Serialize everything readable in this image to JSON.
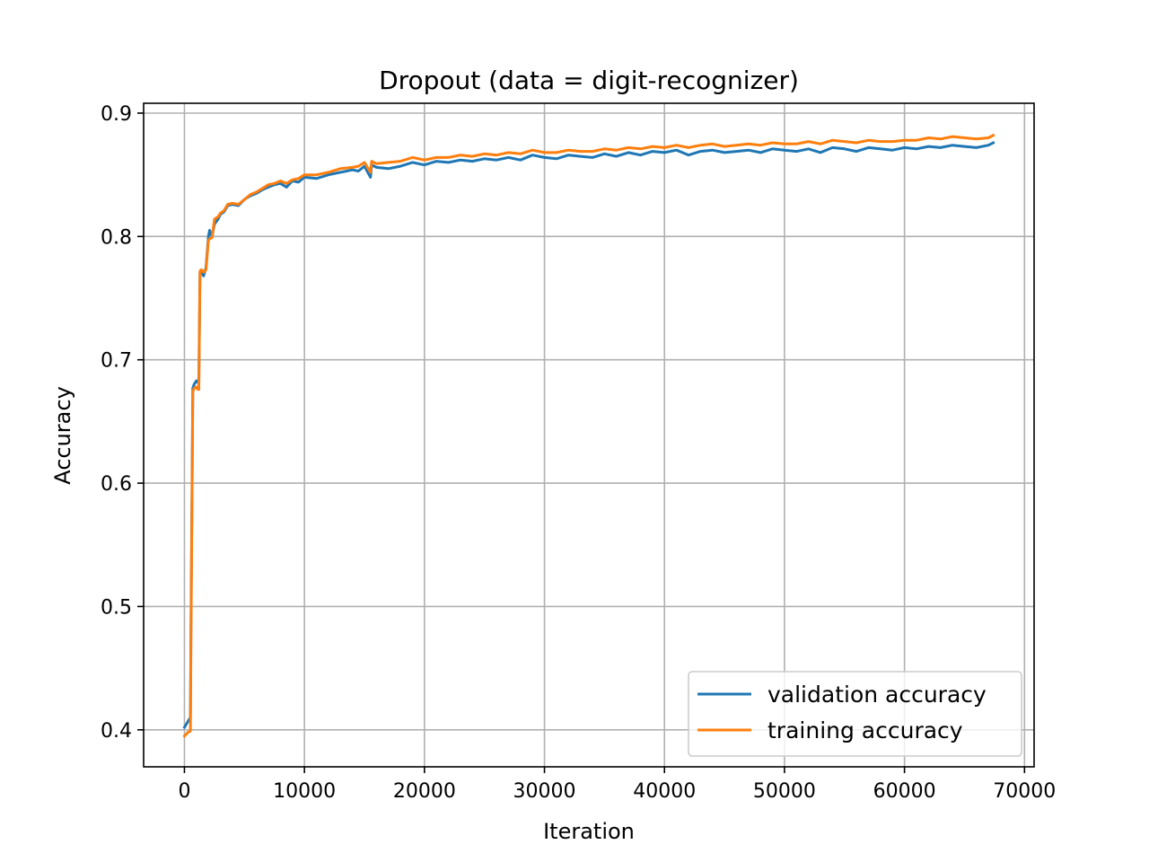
{
  "chart_data": {
    "type": "line",
    "title": "Dropout (data = digit-recognizer)",
    "xlabel": "Iteration",
    "ylabel": "Accuracy",
    "xlim": [
      -3400,
      70800
    ],
    "ylim": [
      0.37,
      0.908
    ],
    "xticks": [
      0,
      10000,
      20000,
      30000,
      40000,
      50000,
      60000,
      70000
    ],
    "yticks": [
      0.4,
      0.5,
      0.6,
      0.7,
      0.8,
      0.9
    ],
    "xtick_labels": [
      "0",
      "10000",
      "20000",
      "30000",
      "40000",
      "50000",
      "60000",
      "70000"
    ],
    "ytick_labels": [
      "0.4",
      "0.5",
      "0.6",
      "0.7",
      "0.8",
      "0.9"
    ],
    "grid": true,
    "legend_position": "lower-right",
    "series": [
      {
        "name": "validation accuracy",
        "color": "#1f77b4",
        "x": [
          0,
          300,
          500,
          550,
          700,
          800,
          1000,
          1100,
          1200,
          1300,
          1400,
          1600,
          1800,
          2000,
          2100,
          2300,
          2500,
          2800,
          3000,
          3300,
          3600,
          4000,
          4500,
          5000,
          5500,
          6000,
          6500,
          7000,
          7500,
          8000,
          8500,
          9000,
          9500,
          10000,
          11000,
          12000,
          13000,
          14000,
          14500,
          15000,
          15500,
          15600,
          16000,
          17000,
          18000,
          19000,
          20000,
          21000,
          22000,
          23000,
          24000,
          25000,
          26000,
          27000,
          28000,
          29000,
          30000,
          31000,
          32000,
          33000,
          34000,
          35000,
          36000,
          37000,
          38000,
          39000,
          40000,
          41000,
          42000,
          43000,
          44000,
          45000,
          46000,
          47000,
          48000,
          49000,
          50000,
          51000,
          52000,
          53000,
          54000,
          55000,
          56000,
          57000,
          58000,
          59000,
          60000,
          61000,
          62000,
          63000,
          64000,
          65000,
          66000,
          67000,
          67400
        ],
        "y": [
          0.402,
          0.407,
          0.41,
          0.49,
          0.677,
          0.68,
          0.683,
          0.683,
          0.68,
          0.77,
          0.772,
          0.768,
          0.775,
          0.8,
          0.805,
          0.8,
          0.81,
          0.814,
          0.818,
          0.82,
          0.825,
          0.826,
          0.825,
          0.83,
          0.833,
          0.835,
          0.838,
          0.84,
          0.842,
          0.843,
          0.84,
          0.845,
          0.844,
          0.848,
          0.847,
          0.85,
          0.852,
          0.854,
          0.853,
          0.857,
          0.848,
          0.858,
          0.856,
          0.855,
          0.857,
          0.86,
          0.858,
          0.861,
          0.86,
          0.862,
          0.861,
          0.863,
          0.862,
          0.864,
          0.862,
          0.866,
          0.864,
          0.863,
          0.866,
          0.865,
          0.864,
          0.867,
          0.865,
          0.868,
          0.866,
          0.869,
          0.868,
          0.87,
          0.866,
          0.869,
          0.87,
          0.868,
          0.869,
          0.87,
          0.868,
          0.871,
          0.87,
          0.869,
          0.871,
          0.868,
          0.872,
          0.871,
          0.869,
          0.872,
          0.871,
          0.87,
          0.872,
          0.871,
          0.873,
          0.872,
          0.874,
          0.873,
          0.872,
          0.874,
          0.876
        ]
      },
      {
        "name": "training accuracy",
        "color": "#ff7f0e",
        "x": [
          0,
          300,
          500,
          550,
          700,
          800,
          1000,
          1100,
          1200,
          1300,
          1400,
          1600,
          1800,
          2000,
          2100,
          2300,
          2500,
          2800,
          3000,
          3300,
          3600,
          4000,
          4500,
          5000,
          5500,
          6000,
          6500,
          7000,
          7500,
          8000,
          8500,
          9000,
          9500,
          10000,
          11000,
          12000,
          13000,
          14000,
          14500,
          15000,
          15500,
          15600,
          16000,
          17000,
          18000,
          19000,
          20000,
          21000,
          22000,
          23000,
          24000,
          25000,
          26000,
          27000,
          28000,
          29000,
          30000,
          31000,
          32000,
          33000,
          34000,
          35000,
          36000,
          37000,
          38000,
          39000,
          40000,
          41000,
          42000,
          43000,
          44000,
          45000,
          46000,
          47000,
          48000,
          49000,
          50000,
          51000,
          52000,
          53000,
          54000,
          55000,
          56000,
          57000,
          58000,
          59000,
          60000,
          61000,
          62000,
          63000,
          64000,
          65000,
          66000,
          67000,
          67400
        ],
        "y": [
          0.395,
          0.398,
          0.399,
          0.48,
          0.674,
          0.677,
          0.678,
          0.676,
          0.676,
          0.772,
          0.773,
          0.771,
          0.773,
          0.797,
          0.798,
          0.799,
          0.814,
          0.816,
          0.819,
          0.821,
          0.826,
          0.827,
          0.826,
          0.83,
          0.834,
          0.836,
          0.839,
          0.842,
          0.843,
          0.845,
          0.843,
          0.846,
          0.847,
          0.85,
          0.85,
          0.852,
          0.855,
          0.856,
          0.857,
          0.86,
          0.852,
          0.861,
          0.859,
          0.86,
          0.861,
          0.864,
          0.862,
          0.864,
          0.864,
          0.866,
          0.865,
          0.867,
          0.866,
          0.868,
          0.867,
          0.87,
          0.868,
          0.868,
          0.87,
          0.869,
          0.869,
          0.871,
          0.87,
          0.872,
          0.871,
          0.873,
          0.872,
          0.874,
          0.872,
          0.874,
          0.875,
          0.873,
          0.874,
          0.875,
          0.874,
          0.876,
          0.875,
          0.875,
          0.877,
          0.875,
          0.878,
          0.877,
          0.876,
          0.878,
          0.877,
          0.877,
          0.878,
          0.878,
          0.88,
          0.879,
          0.881,
          0.88,
          0.879,
          0.88,
          0.882
        ]
      }
    ]
  }
}
